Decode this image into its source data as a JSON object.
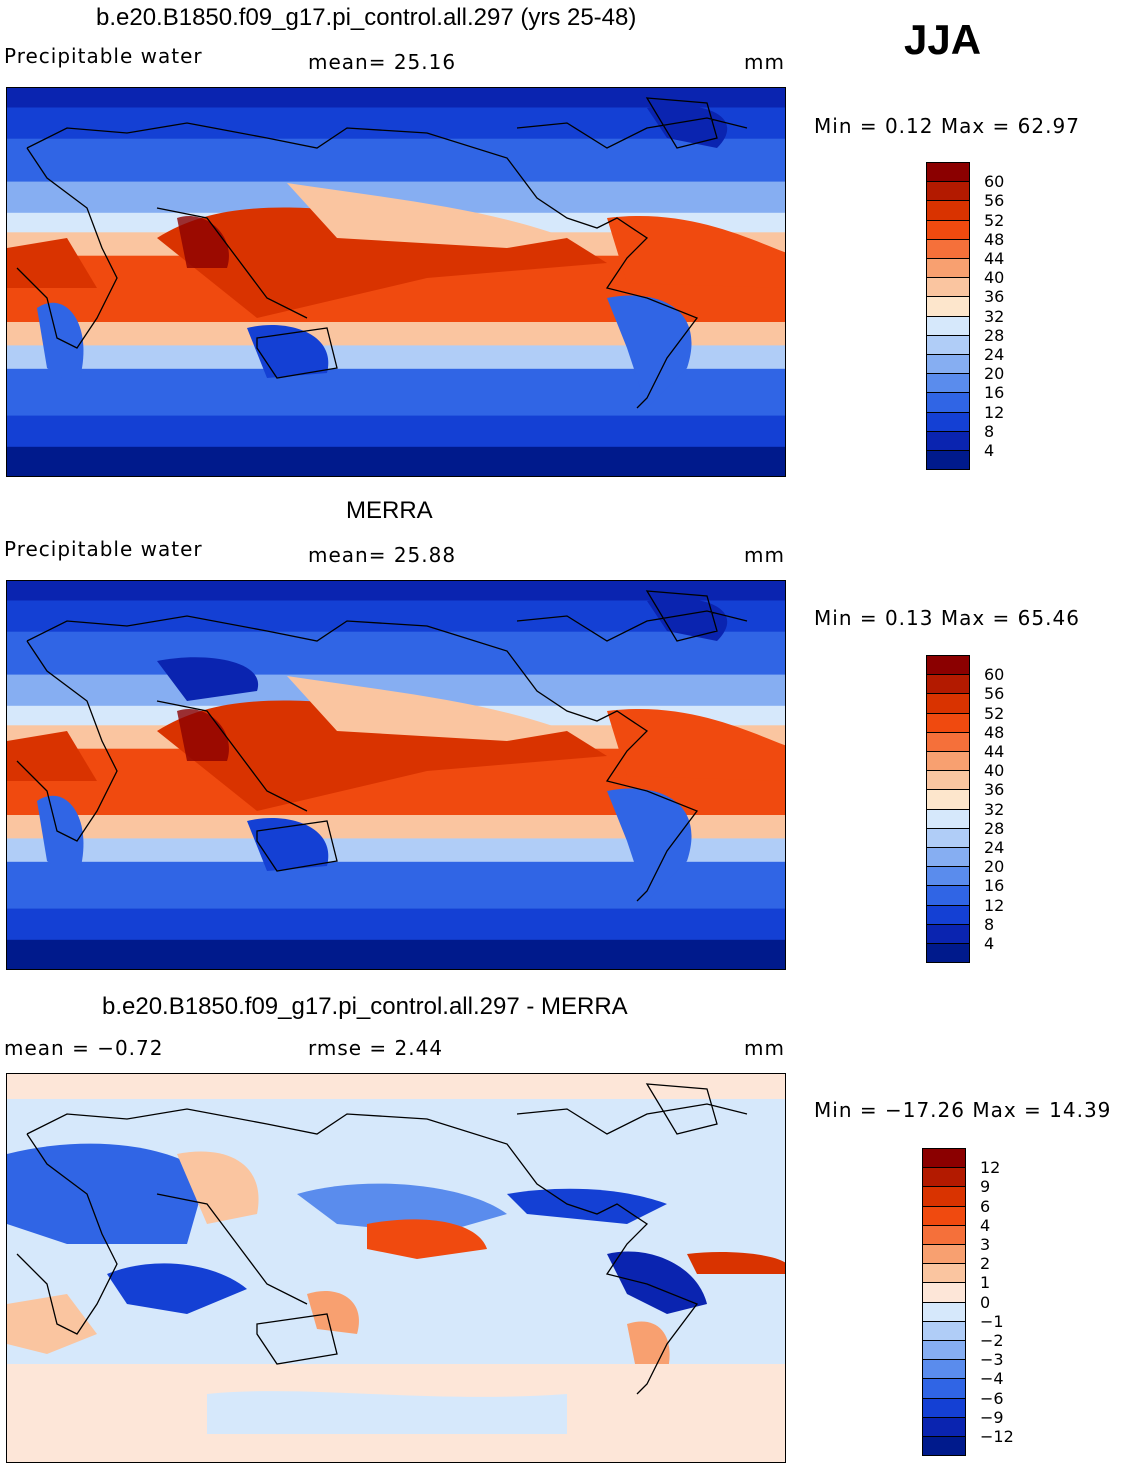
{
  "season": "JJA",
  "panels": [
    {
      "title": "b.e20.B1850.f09_g17.pi_control.all.297 (yrs 25-48)",
      "left_label": "Precipitable water",
      "center_label": "mean=   25.16",
      "units": "mm",
      "minmax": "Min =     0.12  Max =     62.97",
      "kind": "field"
    },
    {
      "title": "MERRA",
      "left_label": "Precipitable water",
      "center_label": "mean=   25.88",
      "units": "mm",
      "minmax": "Min =     0.13  Max =     65.46",
      "kind": "field"
    },
    {
      "title": "b.e20.B1850.f09_g17.pi_control.all.297 - MERRA",
      "left_label": "mean =   −0.72",
      "center_label": "rmse =     2.44",
      "units": "mm",
      "minmax": "Min = −17.26  Max =    14.39",
      "kind": "diff"
    }
  ],
  "colorbars": {
    "field": {
      "labels": [
        "60",
        "56",
        "52",
        "48",
        "44",
        "40",
        "36",
        "32",
        "28",
        "24",
        "20",
        "16",
        "12",
        "8",
        "4"
      ],
      "colors": [
        "#8b0000",
        "#b31a00",
        "#d93300",
        "#f04a0f",
        "#f5703a",
        "#f8a070",
        "#fac5a0",
        "#fde6cc",
        "#d6e8fb",
        "#b0cdf7",
        "#86aef2",
        "#5a8ced",
        "#3065e5",
        "#1440d4",
        "#0a24b0",
        "#001a8c"
      ]
    },
    "diff": {
      "labels": [
        "12",
        "9",
        "6",
        "4",
        "3",
        "2",
        "1",
        "0",
        "−1",
        "−2",
        "−3",
        "−4",
        "−6",
        "−9",
        "−12"
      ],
      "colors": [
        "#8b0000",
        "#b31a00",
        "#d93300",
        "#f04a0f",
        "#f5703a",
        "#f8a070",
        "#fac5a0",
        "#fde6d8",
        "#d6e8fb",
        "#b0cdf7",
        "#86aef2",
        "#5a8ced",
        "#3065e5",
        "#1440d4",
        "#0a24b0",
        "#001a8c"
      ]
    }
  }
}
